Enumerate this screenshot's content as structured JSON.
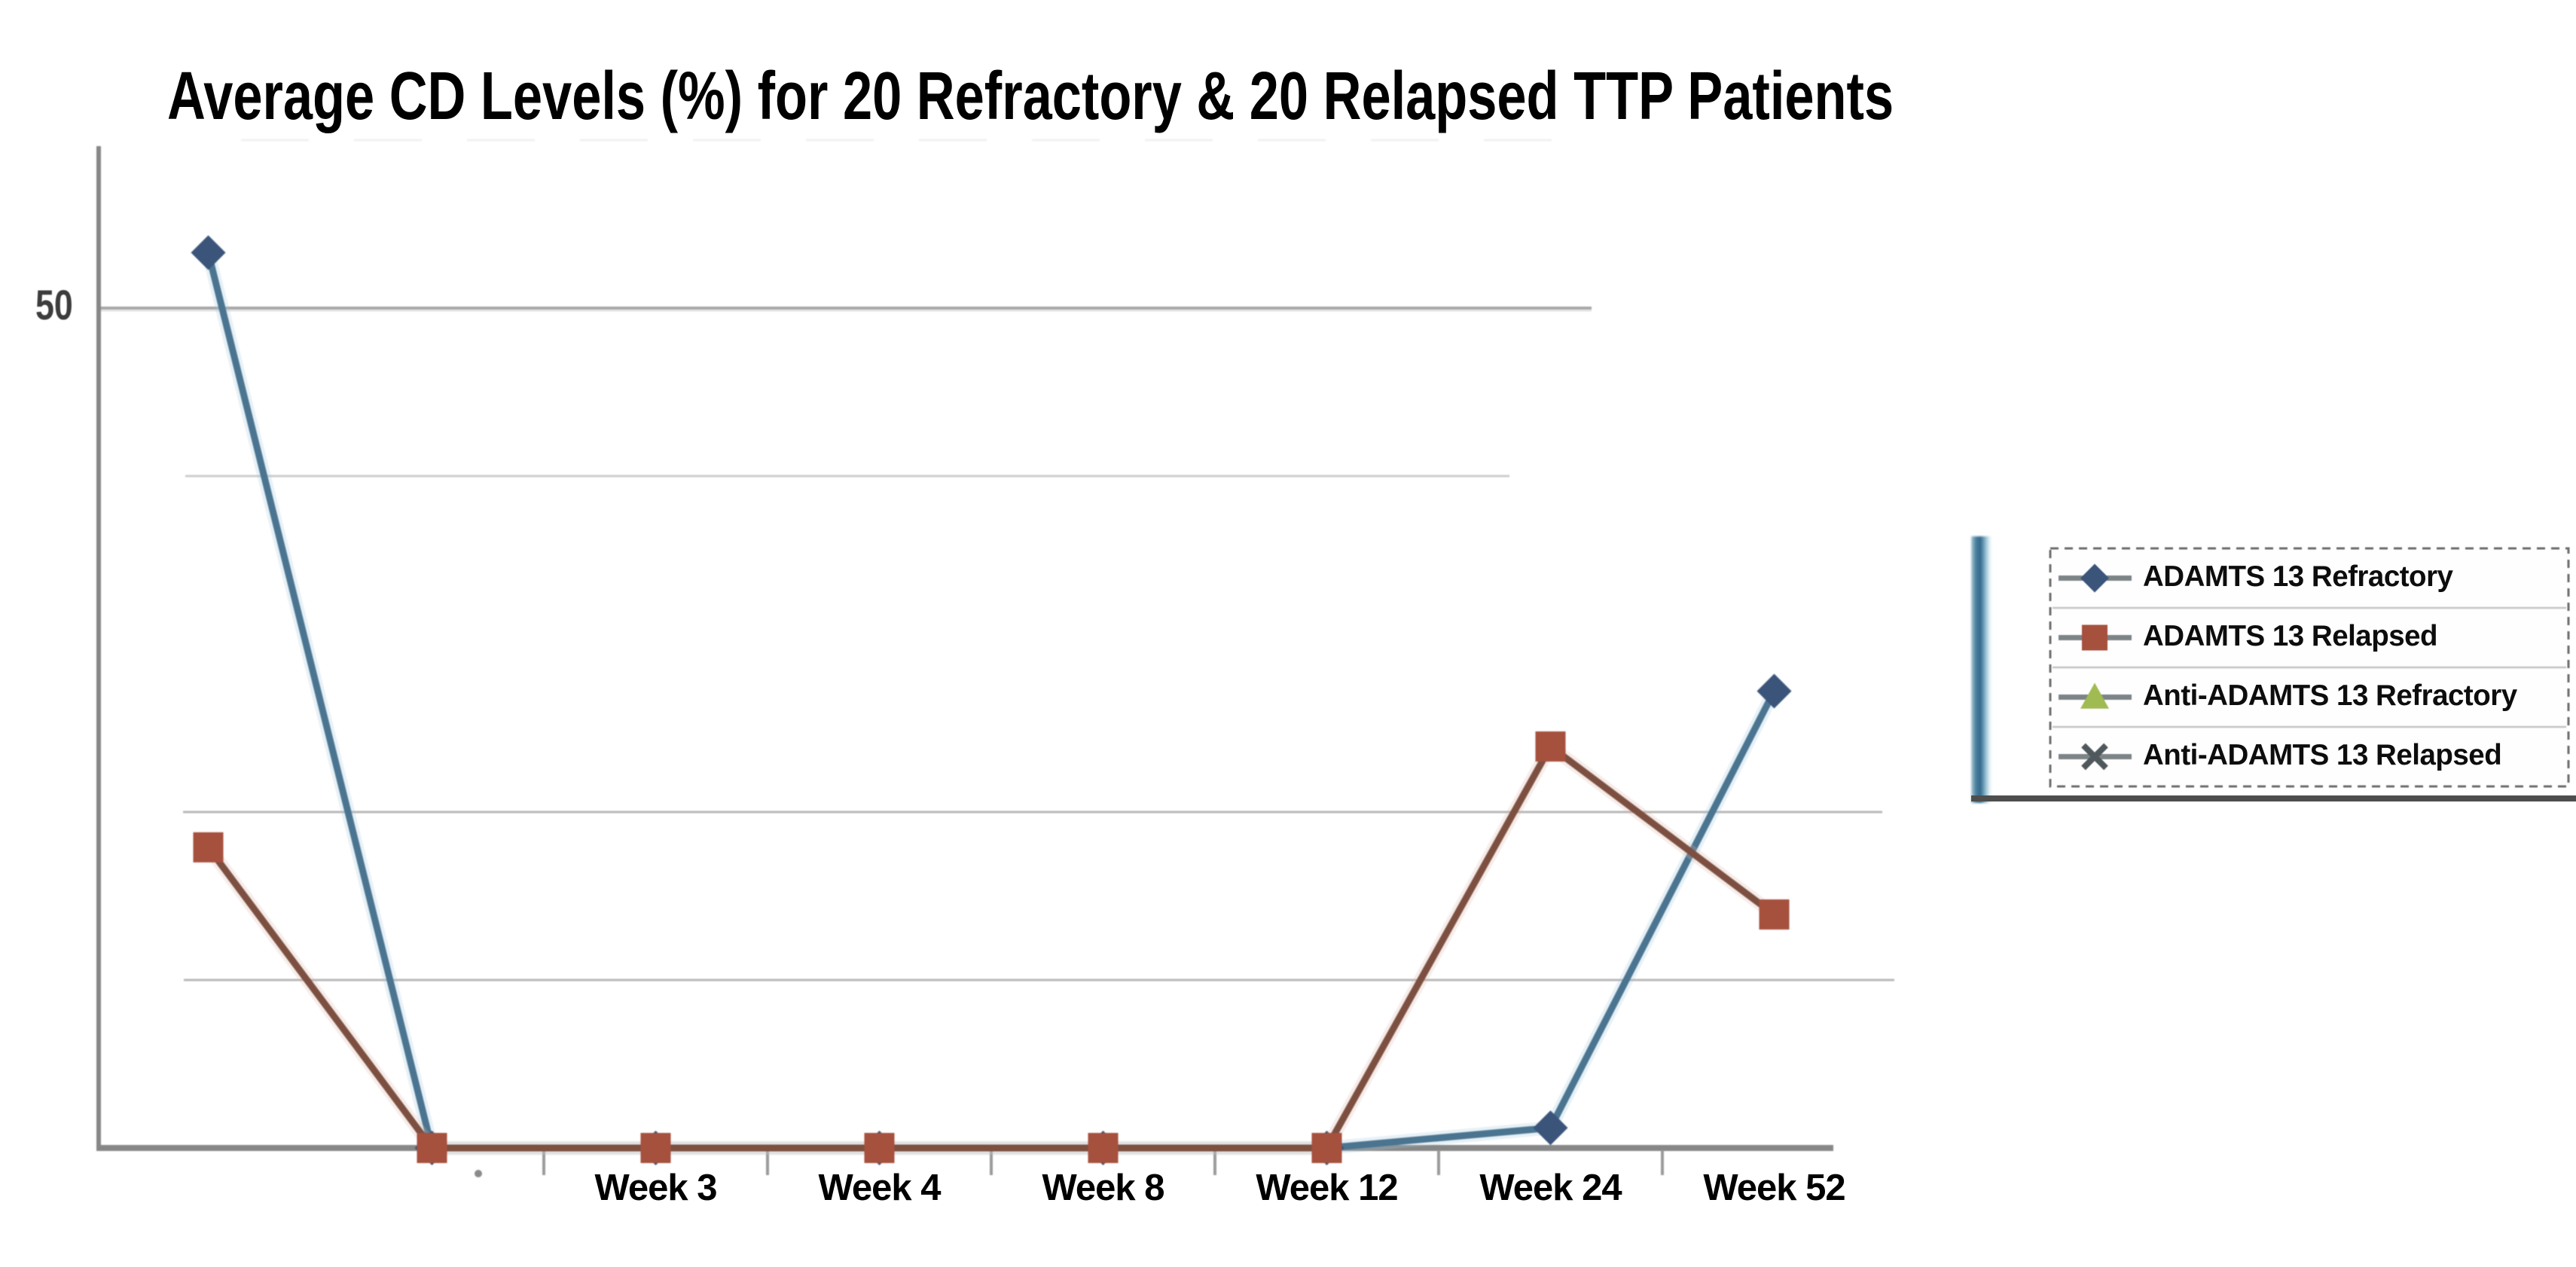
{
  "chart_data": {
    "type": "line",
    "title": "Average CD Levels (%) for 20 Refractory & 20 Relapsed TTP Patients",
    "xlabel": "",
    "ylabel": "",
    "y_axis": {
      "min": 0,
      "max": 60,
      "visible_tick_label": "50",
      "gridline_values": [
        10,
        20,
        40,
        50
      ],
      "grid": true
    },
    "categories": [
      "",
      "",
      "Week 3",
      "Week 4",
      "Week 8",
      "Week 12",
      "Week 24",
      "Week 52"
    ],
    "series": [
      {
        "name": "ADAMTS 13 Refractory",
        "marker": "diamond",
        "line_color": "#4a7490",
        "marker_color": "#3a547a",
        "values": [
          53.3,
          0,
          0,
          0,
          0,
          0,
          1.2,
          27.2
        ]
      },
      {
        "name": "ADAMTS 13 Relapsed",
        "marker": "square",
        "line_color": "#7c4f40",
        "marker_color": "#a6503e",
        "values": [
          17.9,
          0,
          0,
          0,
          0,
          0,
          23.9,
          13.9
        ]
      },
      {
        "name": "Anti-ADAMTS 13 Refractory",
        "marker": "triangle",
        "line_color": "#7d8487",
        "marker_color": "#a0bb52",
        "values": []
      },
      {
        "name": "Anti-ADAMTS 13 Relapsed",
        "marker": "x",
        "line_color": "#7d8487",
        "marker_color": "#4f585c",
        "values": []
      }
    ],
    "legend": {
      "position": "right",
      "entries": [
        "ADAMTS 13 Refractory",
        "ADAMTS 13 Relapsed",
        "Anti-ADAMTS 13 Refractory",
        "Anti-ADAMTS 13 Relapsed"
      ]
    }
  },
  "colors": {
    "grid_strong": "#9f9f9f",
    "grid_faint": "#c9c9c9",
    "axis": "#878787",
    "tick": "#9a9a9a",
    "legend_border": "#6f6f6f",
    "legend_separator": "#c4c4c4",
    "legend_sample_line": "#7d8487",
    "legend_underline": "#4e4e4e",
    "stripe_dark": "#33688a",
    "stripe_mid": "#7fb0c6",
    "stripe_light": "#f4f9fb"
  }
}
